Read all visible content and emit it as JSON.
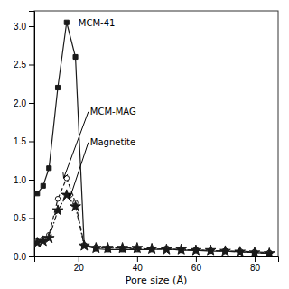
{
  "chart_data": {
    "type": "line",
    "xlabel": "Pore size (Å)",
    "x": [
      6,
      8,
      10,
      13,
      16,
      19,
      22,
      26,
      30,
      35,
      40,
      45,
      50,
      55,
      60,
      65,
      70,
      75,
      80,
      85
    ],
    "series": [
      {
        "color": "#1a1a1a",
        "marker": "square",
        "line_style": "solid",
        "values": [
          0.82,
          0.92,
          1.15,
          2.2,
          3.05,
          2.6,
          0.14,
          0.1,
          0.09,
          0.09,
          0.09,
          0.09,
          0.1,
          0.08,
          0.08,
          0.07,
          0.07,
          0.06,
          0.05,
          0.04
        ]
      },
      {
        "color": "#1a1a1a",
        "marker": "open-circle",
        "line_style": "dashed",
        "values": [
          0.2,
          0.23,
          0.28,
          0.75,
          1.02,
          0.7,
          0.15,
          0.12,
          0.11,
          0.11,
          0.1,
          0.1,
          0.1,
          0.09,
          0.08,
          0.08,
          0.07,
          0.07,
          0.06,
          0.05
        ]
      },
      {
        "color": "#1a1a1a",
        "marker": "star",
        "line_style": "dashdot",
        "values": [
          0.18,
          0.2,
          0.24,
          0.6,
          0.8,
          0.65,
          0.14,
          0.11,
          0.11,
          0.11,
          0.11,
          0.1,
          0.09,
          0.09,
          0.08,
          0.08,
          0.07,
          0.06,
          0.05,
          0.04
        ]
      }
    ],
    "xlim": [
      5,
      88
    ],
    "xticks": [
      20,
      40,
      60,
      80
    ],
    "ylim": [
      0.0,
      3.2
    ],
    "yticks": [
      {
        "value": 0.0,
        "label": "0.0"
      },
      0.5,
      {
        "value": 1.0,
        "label": "1.0"
      },
      1.5,
      {
        "value": 2.0,
        "label": "2.0"
      },
      2.5,
      {
        "value": 3.0,
        "label": "3.0"
      }
    ],
    "annotations": [
      {
        "text": "MCM-41",
        "x": 20,
        "y": 3.0
      },
      {
        "text": "MCM-MAG",
        "x": 24,
        "y": 1.85,
        "arrow_x": 15,
        "arrow_y": 1.02
      },
      {
        "text": "Magnetite",
        "x": 24,
        "y": 1.45,
        "arrow_x": 17,
        "arrow_y": 0.75
      }
    ]
  }
}
